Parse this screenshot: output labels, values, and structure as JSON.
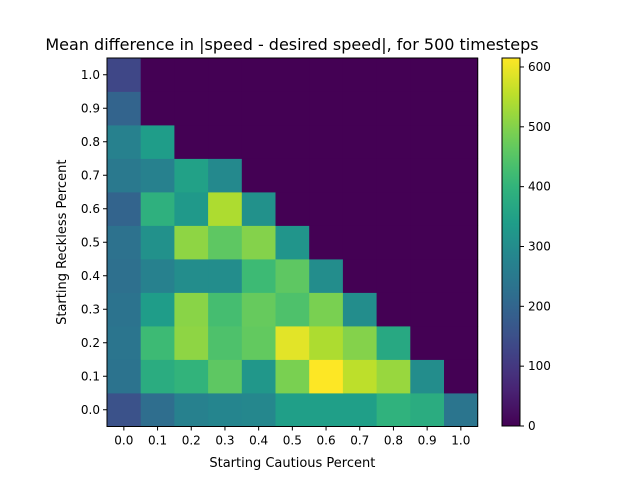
{
  "chart_data": {
    "type": "heatmap",
    "title": "Mean difference in |speed - desired speed|, for 500 timesteps",
    "xlabel": "Starting Cautious Percent",
    "ylabel": "Starting Reckless Percent",
    "x_categories": [
      "0.0",
      "0.1",
      "0.2",
      "0.3",
      "0.4",
      "0.5",
      "0.6",
      "0.7",
      "0.8",
      "0.9",
      "1.0"
    ],
    "y_categories": [
      "0.0",
      "0.1",
      "0.2",
      "0.3",
      "0.4",
      "0.5",
      "0.6",
      "0.7",
      "0.8",
      "0.9",
      "1.0"
    ],
    "values": [
      [
        155,
        220,
        270,
        280,
        285,
        345,
        345,
        345,
        395,
        380,
        240
      ],
      [
        235,
        380,
        400,
        460,
        325,
        490,
        615,
        555,
        520,
        300,
        0
      ],
      [
        240,
        420,
        510,
        440,
        465,
        590,
        540,
        500,
        370,
        0,
        0
      ],
      [
        235,
        340,
        505,
        430,
        470,
        440,
        490,
        300,
        0,
        0,
        0
      ],
      [
        225,
        270,
        300,
        300,
        420,
        460,
        300,
        0,
        0,
        0,
        0
      ],
      [
        230,
        310,
        510,
        460,
        500,
        320,
        0,
        0,
        0,
        0,
        0
      ],
      [
        195,
        390,
        330,
        540,
        310,
        0,
        0,
        0,
        0,
        0,
        0
      ],
      [
        250,
        270,
        350,
        290,
        0,
        0,
        0,
        0,
        0,
        0,
        0
      ],
      [
        270,
        340,
        0,
        0,
        0,
        0,
        0,
        0,
        0,
        0,
        0
      ],
      [
        195,
        0,
        0,
        0,
        0,
        0,
        0,
        0,
        0,
        0,
        0
      ],
      [
        130,
        0,
        0,
        0,
        0,
        0,
        0,
        0,
        0,
        0,
        0
      ]
    ],
    "colormap": "viridis",
    "vmin": 0,
    "vmax": 615,
    "colorbar_ticks": [
      0,
      100,
      200,
      300,
      400,
      500,
      600
    ]
  }
}
